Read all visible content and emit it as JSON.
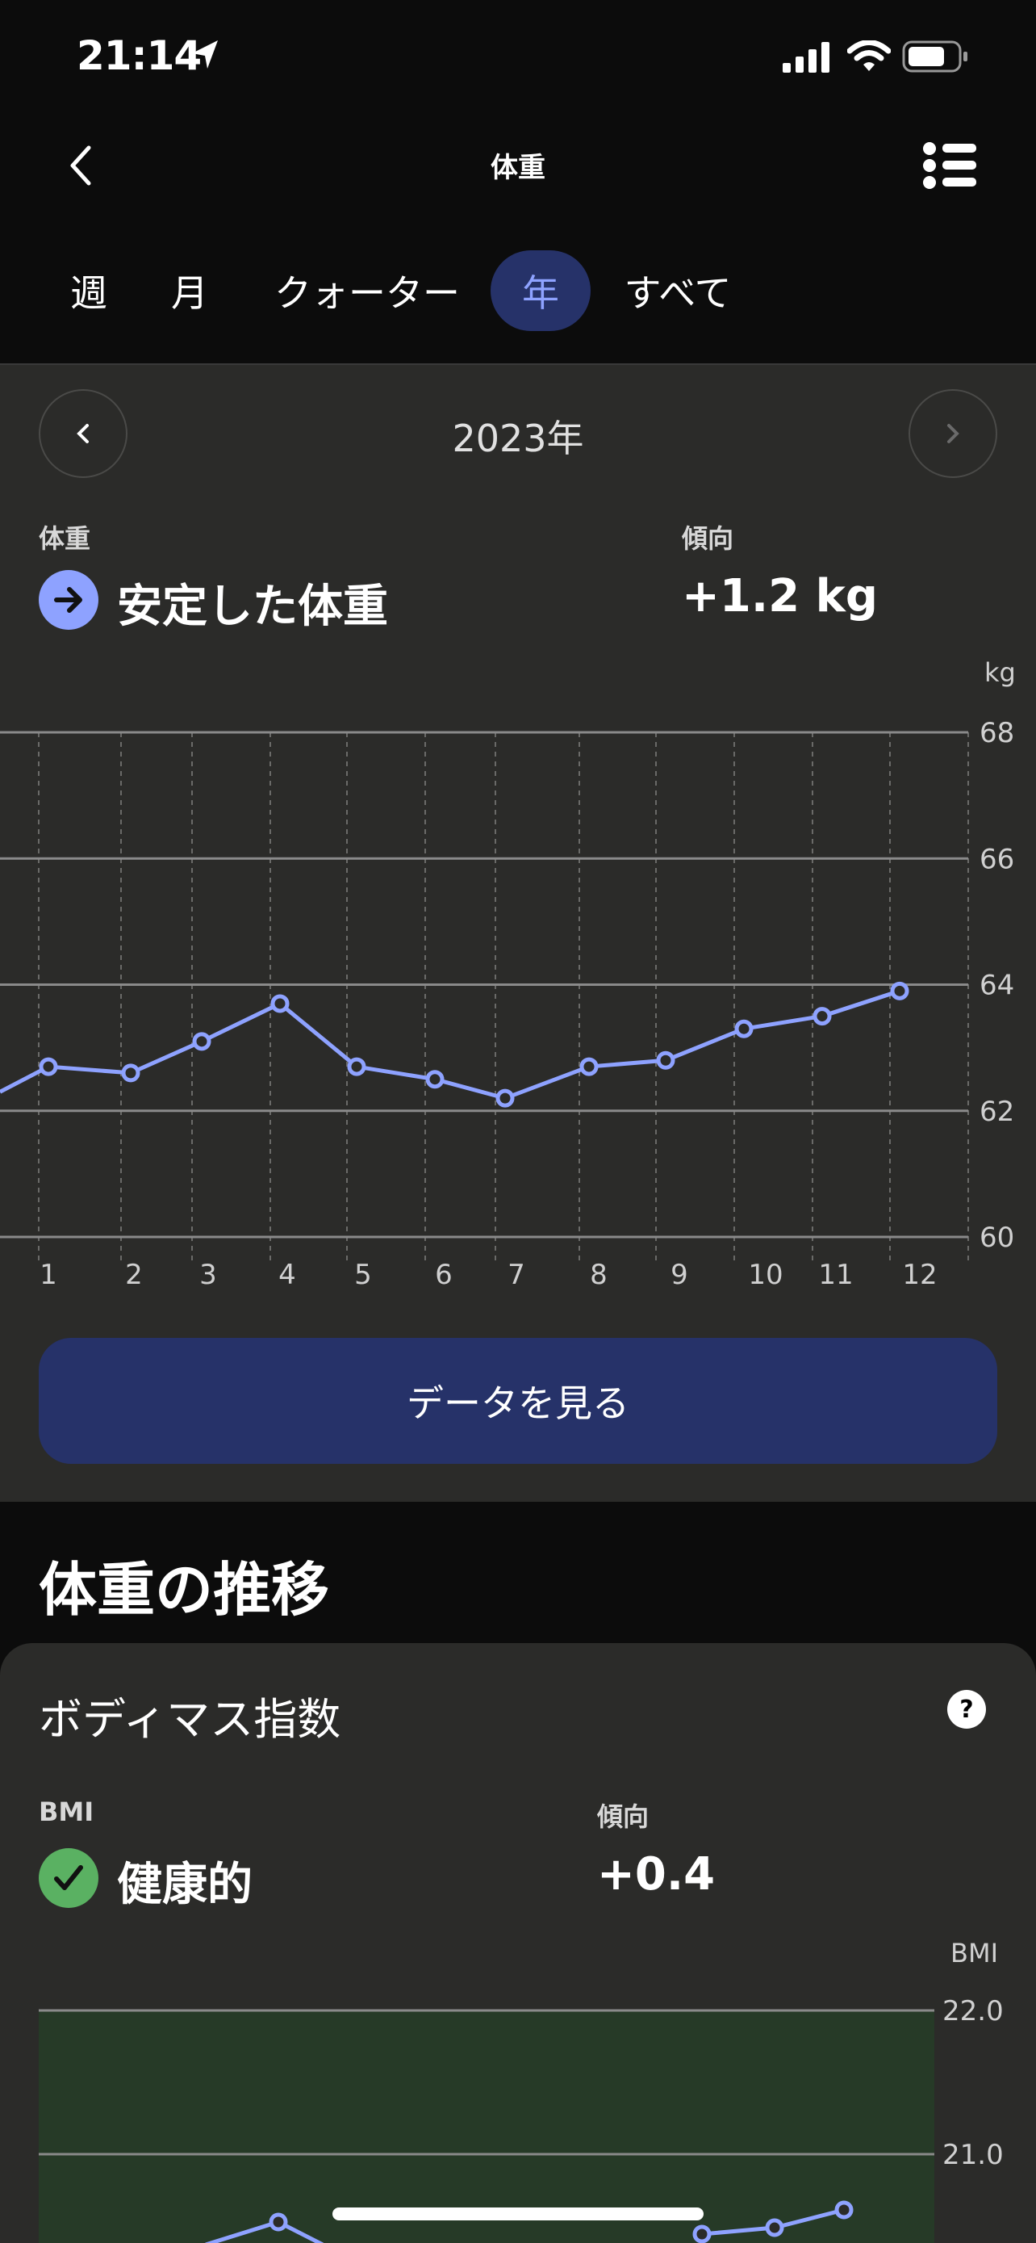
{
  "status_bar": {
    "time": "21:14"
  },
  "header": {
    "title": "体重"
  },
  "tabs": [
    {
      "label": "週"
    },
    {
      "label": "月"
    },
    {
      "label": "クォーター"
    },
    {
      "label": "年",
      "active": true
    },
    {
      "label": "すべて"
    }
  ],
  "period": {
    "label": "2023年"
  },
  "weight": {
    "label": "体重",
    "status": "安定した体重",
    "trend_label": "傾向",
    "trend_value": "+1.2 kg"
  },
  "chart_data": {
    "type": "line",
    "unit": "kg",
    "categories": [
      "1",
      "2",
      "3",
      "4",
      "5",
      "6",
      "7",
      "8",
      "9",
      "10",
      "11",
      "12"
    ],
    "series": [
      {
        "values": [
          62.7,
          62.6,
          63.1,
          63.7,
          62.7,
          62.5,
          62.2,
          62.7,
          62.8,
          63.3,
          63.5,
          63.9
        ]
      }
    ],
    "yticks": [
      "68",
      "66",
      "64",
      "62",
      "60"
    ],
    "ylim": [
      60,
      68
    ],
    "line_color": "#8ea2ff",
    "grid": true
  },
  "see_data_button": "データを見る",
  "section_title": "体重の推移",
  "bmi": {
    "card_title": "ボディマス指数",
    "label": "BMI",
    "status": "健康的",
    "trend_label": "傾向",
    "trend_value": "+0.4",
    "unit": "BMI",
    "yticks": [
      "22.0",
      "21.0"
    ],
    "healthy_zone_color": "#263a27"
  },
  "colors": {
    "accent": "#8ea2ff",
    "button_bg": "#263269",
    "panel_bg": "#2b2b29",
    "healthy_green": "#5ab162"
  }
}
